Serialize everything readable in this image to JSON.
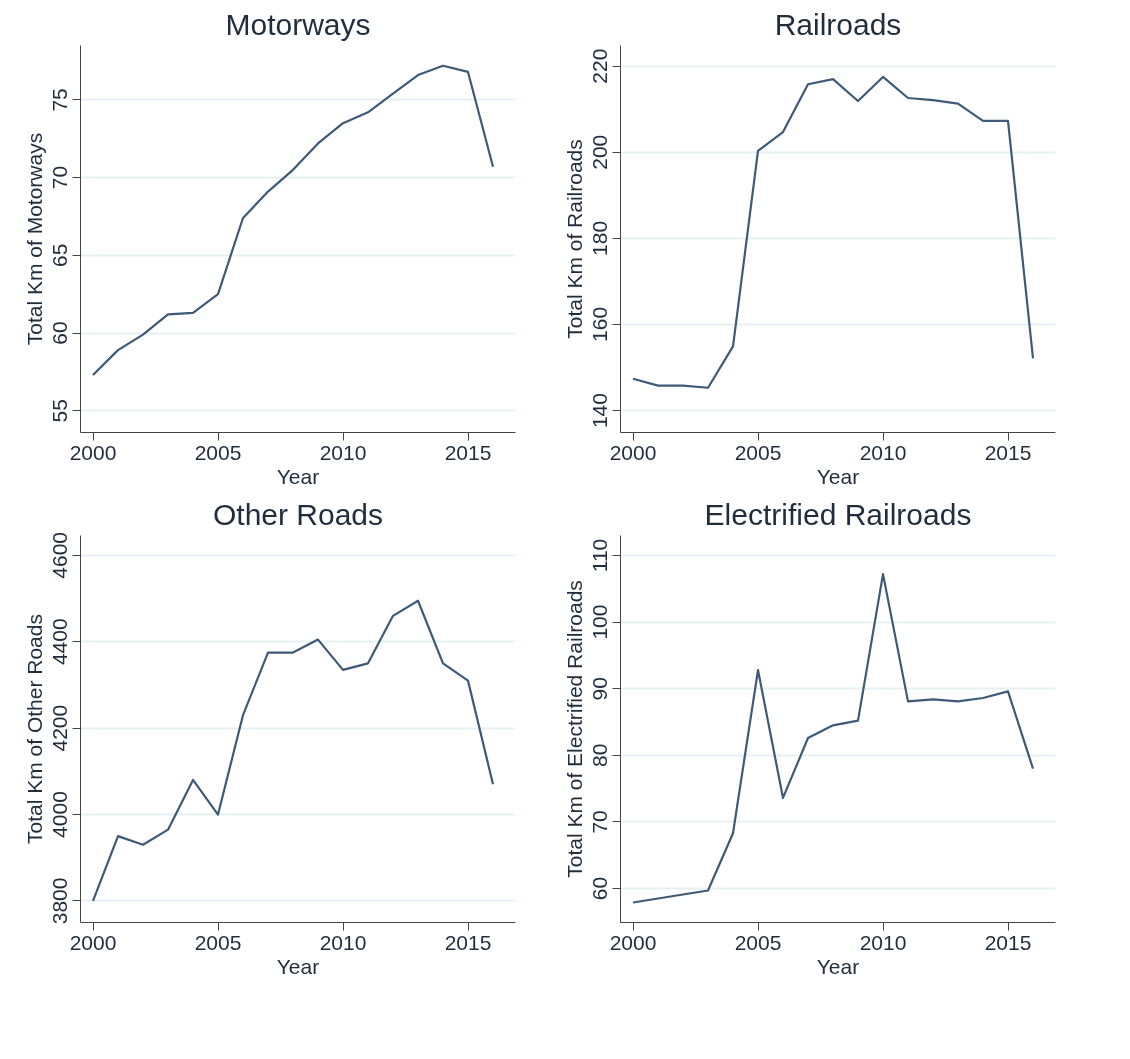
{
  "chart_data": [
    {
      "type": "line",
      "title": "Motorways",
      "xlabel": "Year",
      "ylabel": "Total Km of Motorways",
      "x": [
        2000,
        2001,
        2002,
        2003,
        2004,
        2005,
        2006,
        2007,
        2008,
        2009,
        2010,
        2011,
        2012,
        2013,
        2014,
        2015,
        2016
      ],
      "series": [
        {
          "color": "#3e5a78",
          "values": [
            57.3,
            58.9,
            59.9,
            61.2,
            61.3,
            62.5,
            67.4,
            69.1,
            70.5,
            72.2,
            73.5,
            74.2,
            75.4,
            76.6,
            77.2,
            76.8,
            70.7
          ]
        }
      ],
      "xlim": [
        1999.5,
        2016.9
      ],
      "ylim": [
        53.6,
        78.5
      ],
      "xticks": [
        2000,
        2005,
        2010,
        2015
      ],
      "yticks": [
        55,
        60,
        65,
        70,
        75
      ],
      "grid": "y"
    },
    {
      "type": "line",
      "title": "Railroads",
      "xlabel": "Year",
      "ylabel": "Total Km of Railroads",
      "x": [
        2000,
        2001,
        2002,
        2003,
        2004,
        2005,
        2006,
        2007,
        2008,
        2009,
        2010,
        2011,
        2012,
        2013,
        2014,
        2015,
        2016
      ],
      "series": [
        {
          "color": "#3e5a78",
          "values": [
            147.4,
            145.8,
            145.8,
            145.3,
            154.9,
            200.3,
            204.7,
            215.8,
            217.0,
            211.9,
            217.5,
            212.6,
            212.1,
            211.3,
            207.3,
            207.3,
            152.1
          ]
        }
      ],
      "xlim": [
        1999.5,
        2016.9
      ],
      "ylim": [
        134.9,
        224.8
      ],
      "xticks": [
        2000,
        2005,
        2010,
        2015
      ],
      "yticks": [
        140,
        160,
        180,
        200,
        220
      ],
      "grid": "y"
    },
    {
      "type": "line",
      "title": "Other Roads",
      "xlabel": "Year",
      "ylabel": "Total Km of Other Roads",
      "x": [
        2000,
        2001,
        2002,
        2003,
        2004,
        2005,
        2006,
        2007,
        2008,
        2009,
        2010,
        2011,
        2012,
        2013,
        2014,
        2015,
        2016
      ],
      "series": [
        {
          "color": "#3e5a78",
          "values": [
            3800,
            3950,
            3930,
            3965,
            4080,
            4000,
            4230,
            4375,
            4375,
            4405,
            4335,
            4350,
            4460,
            4495,
            4350,
            4310,
            4070
          ]
        }
      ],
      "xlim": [
        1999.5,
        2016.9
      ],
      "ylim": [
        3750,
        4646
      ],
      "xticks": [
        2000,
        2005,
        2010,
        2015
      ],
      "yticks": [
        3800,
        4000,
        4200,
        4400,
        4600
      ],
      "grid": "y"
    },
    {
      "type": "line",
      "title": "Electrified Railroads",
      "xlabel": "Year",
      "ylabel": "Total Km of Electrified Railroads",
      "x": [
        2000,
        2001,
        2002,
        2003,
        2004,
        2005,
        2006,
        2007,
        2008,
        2009,
        2010,
        2011,
        2012,
        2013,
        2014,
        2015,
        2016
      ],
      "series": [
        {
          "color": "#3e5a78",
          "values": [
            57.9,
            58.5,
            59.1,
            59.7,
            68.3,
            92.8,
            73.6,
            82.6,
            84.5,
            85.2,
            107.2,
            88.1,
            88.4,
            88.1,
            88.6,
            89.6,
            78.0
          ]
        }
      ],
      "xlim": [
        1999.5,
        2016.9
      ],
      "ylim": [
        54.9,
        113.0
      ],
      "xticks": [
        2000,
        2005,
        2010,
        2015
      ],
      "yticks": [
        60,
        70,
        80,
        90,
        100,
        110
      ],
      "grid": "y"
    }
  ]
}
